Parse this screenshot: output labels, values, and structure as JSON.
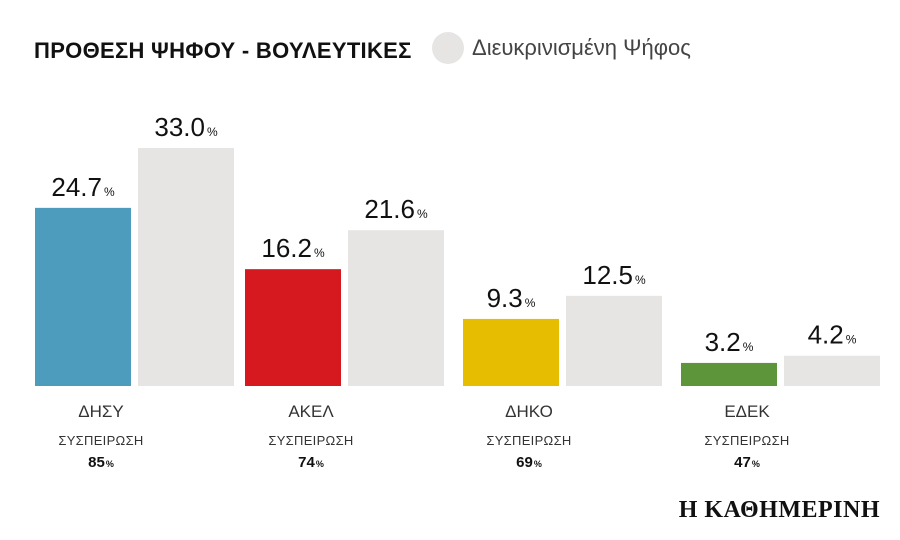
{
  "title": "ΠΡΟΘΕΣΗ ΨΗΦΟΥ - ΒΟΥΛΕΥΤΙΚΕΣ",
  "legend": {
    "label": "Διευκρινισμένη Ψήφος",
    "color": "#e6e5e3"
  },
  "brand": "Η ΚΑΘΗΜΕΡΙΝΗ",
  "chart_data": {
    "type": "bar",
    "categories": [
      "ΔΗΣΥ",
      "ΑΚΕΛ",
      "ΔΗΚΟ",
      "ΕΔΕΚ"
    ],
    "unit": "%",
    "series": [
      {
        "values": [
          24.7,
          16.2,
          9.3,
          3.2
        ],
        "colors": [
          "#4e9cbd",
          "#d5191f",
          "#e6bd00",
          "#5d963a"
        ]
      },
      {
        "name": "Διευκρινισμένη Ψήφος",
        "values": [
          33.0,
          21.6,
          12.5,
          4.2
        ],
        "color": "#e6e5e3"
      }
    ],
    "sub_label": "ΣΥΣΠΕΙΡΩΣΗ",
    "cohesion": [
      85,
      74,
      69,
      47
    ],
    "ylim": [
      0,
      33.0
    ]
  }
}
